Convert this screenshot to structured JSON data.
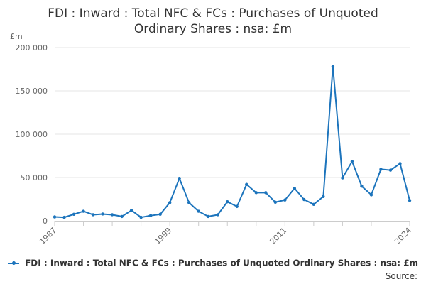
{
  "chart_data": {
    "type": "line",
    "title_line1": "FDI : Inward : Total NFC & FCs : Purchases of Unquoted",
    "title_line2": "Ordinary Shares : nsa: £m",
    "unit_label": "£m",
    "y_ticks": [
      {
        "value": 0,
        "label": "0"
      },
      {
        "value": 50000,
        "label": "50 000"
      },
      {
        "value": 100000,
        "label": "100 000"
      },
      {
        "value": 150000,
        "label": "150 000"
      },
      {
        "value": 200000,
        "label": "200 000"
      }
    ],
    "x_ticks": [
      {
        "value": 1987,
        "label": "1987"
      },
      {
        "value": 1999,
        "label": "1999"
      },
      {
        "value": 2011,
        "label": "2011"
      },
      {
        "value": 2024,
        "label": "2024"
      }
    ],
    "xlim": [
      1987,
      2024
    ],
    "ylim": [
      0,
      200000
    ],
    "series": [
      {
        "name": "FDI : Inward : Total NFC & FCs : Purchases of Unquoted Ordinary Shares : nsa: £m",
        "color": "#1c74bc",
        "x": [
          1987,
          1988,
          1989,
          1990,
          1991,
          1992,
          1993,
          1994,
          1995,
          1996,
          1997,
          1998,
          1999,
          2000,
          2001,
          2002,
          2003,
          2004,
          2005,
          2006,
          2007,
          2008,
          2009,
          2010,
          2011,
          2012,
          2013,
          2014,
          2015,
          2016,
          2017,
          2018,
          2019,
          2020,
          2021,
          2022,
          2023,
          2024
        ],
        "values": [
          4500,
          4000,
          7500,
          11000,
          7000,
          7800,
          7000,
          5000,
          12000,
          4000,
          6000,
          7500,
          21000,
          49000,
          21000,
          11000,
          5000,
          7000,
          22000,
          16500,
          42000,
          32500,
          32500,
          21500,
          24000,
          37500,
          24500,
          19000,
          28000,
          178000,
          49500,
          68500,
          40000,
          30000,
          59500,
          58500,
          66000,
          23500
        ]
      }
    ],
    "legend_placement": "bottom",
    "grid": true,
    "source_label": "Source:"
  }
}
